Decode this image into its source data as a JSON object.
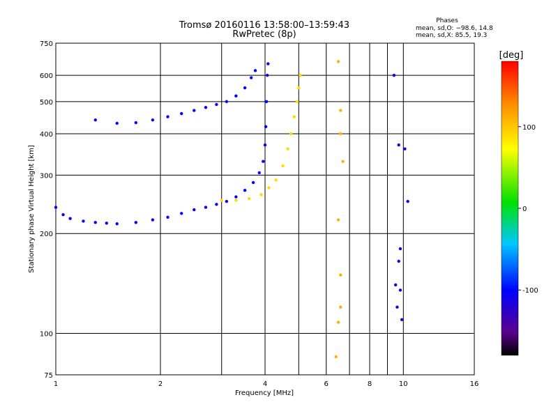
{
  "chart_data": {
    "type": "scatter",
    "title": "Tromsø 20160116 13:58:00–13:59:43",
    "subtitle": "RwPretec (8p)",
    "xlabel": "Frequency [MHz]",
    "ylabel": "Stationary phase Virtual Height [km]",
    "x_scale": "log",
    "y_scale": "log",
    "xlim": [
      1,
      16
    ],
    "ylim": [
      75,
      750
    ],
    "grid": true,
    "x_ticks": [
      1,
      2,
      4,
      6,
      8,
      10,
      16
    ],
    "x_minor_gridlines": [
      3,
      5,
      7,
      9
    ],
    "y_ticks": [
      75,
      100,
      200,
      300,
      400,
      500,
      600,
      750
    ],
    "phases_box": {
      "title": "Phases",
      "line_o": "mean, sd,O: −98.6, 14.8",
      "line_x": "mean, sd,X:  85.5, 19.3"
    },
    "colorbar": {
      "label": "[deg]",
      "range": [
        -180,
        180
      ],
      "ticks": [
        100,
        0,
        -100
      ],
      "colormap": "rainbow: black → purple → blue → cyan → green → yellow → orange → red"
    },
    "series": [
      {
        "trace": "O-mode trace, lower layer",
        "phase_deg": -100,
        "points": [
          [
            1.0,
            240
          ],
          [
            1.05,
            228
          ],
          [
            1.1,
            222
          ],
          [
            1.2,
            218
          ],
          [
            1.3,
            216
          ],
          [
            1.4,
            215
          ],
          [
            1.5,
            214
          ],
          [
            1.7,
            216
          ],
          [
            1.9,
            220
          ],
          [
            2.1,
            224
          ],
          [
            2.3,
            230
          ],
          [
            2.5,
            236
          ],
          [
            2.7,
            240
          ],
          [
            2.9,
            245
          ],
          [
            3.1,
            250
          ],
          [
            3.3,
            258
          ],
          [
            3.5,
            270
          ],
          [
            3.7,
            285
          ],
          [
            3.85,
            305
          ],
          [
            3.95,
            330
          ],
          [
            4.0,
            370
          ],
          [
            4.02,
            420
          ],
          [
            4.04,
            500
          ],
          [
            4.06,
            600
          ],
          [
            4.08,
            650
          ]
        ]
      },
      {
        "trace": "O-mode trace, upper layer",
        "phase_deg": -100,
        "points": [
          [
            1.3,
            440
          ],
          [
            1.5,
            430
          ],
          [
            1.7,
            432
          ],
          [
            1.9,
            440
          ],
          [
            2.1,
            450
          ],
          [
            2.3,
            460
          ],
          [
            2.5,
            470
          ],
          [
            2.7,
            480
          ],
          [
            2.9,
            490
          ],
          [
            3.1,
            500
          ],
          [
            3.3,
            520
          ],
          [
            3.5,
            550
          ],
          [
            3.65,
            590
          ],
          [
            3.75,
            620
          ]
        ]
      },
      {
        "trace": "X-mode trace",
        "phase_deg": 90,
        "points": [
          [
            3.0,
            252
          ],
          [
            3.3,
            252
          ],
          [
            3.6,
            255
          ],
          [
            3.9,
            262
          ],
          [
            4.1,
            275
          ],
          [
            4.3,
            290
          ],
          [
            4.5,
            320
          ],
          [
            4.65,
            360
          ],
          [
            4.75,
            400
          ],
          [
            4.85,
            450
          ],
          [
            4.95,
            500
          ],
          [
            5.0,
            550
          ],
          [
            5.05,
            600
          ]
        ]
      },
      {
        "trace": "scattered points, vertical line near 6.3–7 MHz",
        "phase_deg": 110,
        "points": [
          [
            6.5,
            660
          ],
          [
            6.6,
            470
          ],
          [
            6.6,
            400
          ],
          [
            6.7,
            330
          ],
          [
            6.5,
            220
          ],
          [
            6.6,
            150
          ],
          [
            6.6,
            120
          ],
          [
            6.5,
            108
          ],
          [
            6.4,
            85
          ]
        ]
      },
      {
        "trace": "scattered points, 9–10 MHz",
        "phase_deg": -110,
        "points": [
          [
            9.8,
            180
          ],
          [
            9.7,
            165
          ],
          [
            9.5,
            140
          ],
          [
            9.8,
            135
          ],
          [
            9.6,
            120
          ],
          [
            9.9,
            110
          ],
          [
            10.3,
            250
          ],
          [
            10.1,
            360
          ],
          [
            9.4,
            600
          ],
          [
            9.7,
            370
          ]
        ]
      }
    ]
  }
}
